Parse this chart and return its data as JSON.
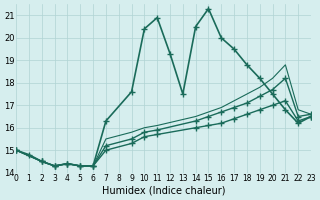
{
  "xlabel": "Humidex (Indice chaleur)",
  "ylabel": "",
  "background_color": "#d6eeee",
  "grid_color": "#b0d4d4",
  "line_color": "#1a6b5a",
  "xlim": [
    0,
    23
  ],
  "ylim": [
    14,
    21.5
  ],
  "yticks": [
    14,
    15,
    16,
    17,
    18,
    19,
    20,
    21
  ],
  "xticks": [
    0,
    1,
    2,
    3,
    4,
    5,
    6,
    7,
    8,
    9,
    10,
    11,
    12,
    13,
    14,
    15,
    16,
    17,
    18,
    19,
    20,
    21,
    22,
    23
  ],
  "lines": [
    {
      "x": [
        0,
        1,
        2,
        3,
        4,
        5,
        6,
        7,
        9,
        10,
        11,
        12,
        13,
        14,
        15,
        16,
        17,
        18,
        19,
        20,
        21,
        22,
        23
      ],
      "y": [
        15.0,
        14.8,
        14.5,
        14.3,
        14.4,
        14.3,
        14.3,
        16.3,
        17.6,
        20.4,
        20.9,
        19.3,
        17.5,
        20.5,
        21.3,
        20.0,
        19.5,
        18.8,
        18.2,
        17.5,
        16.8,
        16.2,
        16.5
      ],
      "style": "-",
      "marker": "+",
      "linewidth": 1.2
    },
    {
      "x": [
        0,
        2,
        3,
        4,
        5,
        6,
        7,
        9,
        10,
        11,
        14,
        15,
        16,
        17,
        18,
        19,
        20,
        21,
        22,
        23
      ],
      "y": [
        15.0,
        14.5,
        14.3,
        14.4,
        14.3,
        14.3,
        15.0,
        15.3,
        15.6,
        15.7,
        16.0,
        16.1,
        16.2,
        16.4,
        16.6,
        16.8,
        17.0,
        17.2,
        16.3,
        16.5
      ],
      "style": "-",
      "marker": "+",
      "linewidth": 1.0
    },
    {
      "x": [
        0,
        2,
        3,
        4,
        5,
        6,
        7,
        9,
        10,
        11,
        14,
        15,
        16,
        17,
        18,
        19,
        20,
        21,
        22,
        23
      ],
      "y": [
        15.0,
        14.5,
        14.3,
        14.4,
        14.3,
        14.3,
        15.2,
        15.5,
        15.8,
        15.9,
        16.3,
        16.5,
        16.7,
        16.9,
        17.1,
        17.4,
        17.7,
        18.2,
        16.5,
        16.6
      ],
      "style": "-",
      "marker": "+",
      "linewidth": 1.0
    },
    {
      "x": [
        0,
        2,
        3,
        4,
        5,
        6,
        7,
        9,
        10,
        11,
        14,
        15,
        16,
        17,
        18,
        19,
        20,
        21,
        22,
        23
      ],
      "y": [
        15.0,
        14.5,
        14.3,
        14.4,
        14.3,
        14.3,
        15.5,
        15.8,
        16.0,
        16.1,
        16.5,
        16.7,
        16.9,
        17.2,
        17.5,
        17.8,
        18.2,
        18.8,
        16.8,
        16.6
      ],
      "style": "-",
      "marker": null,
      "linewidth": 0.8
    }
  ]
}
